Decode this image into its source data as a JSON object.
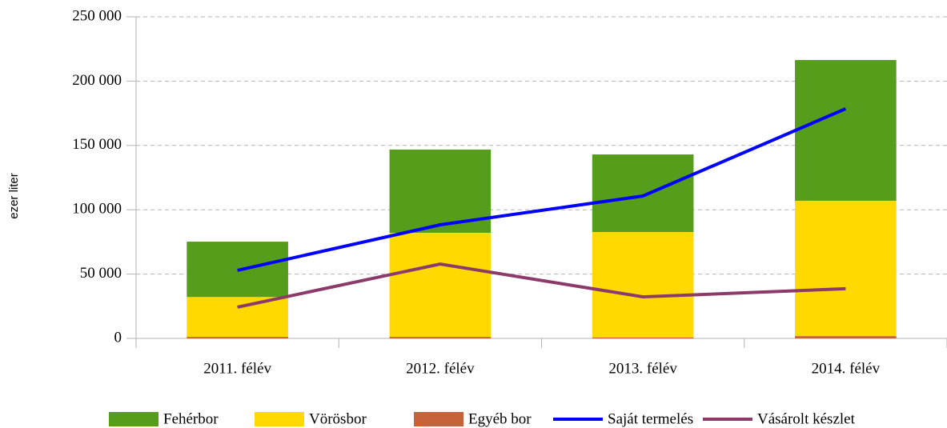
{
  "chart_data": {
    "type": "bar",
    "stacked": true,
    "y_label": "ezer liter",
    "categories": [
      "2011. félév",
      "2012. félév",
      "2013. félév",
      "2014. félév"
    ],
    "series": [
      {
        "name": "Fehérbor",
        "type": "bar",
        "color": "#579d1c",
        "values": [
          43000,
          64700,
          60300,
          109400
        ]
      },
      {
        "name": "Vörösbor",
        "type": "bar",
        "color": "#ffd900",
        "values": [
          31000,
          80900,
          81900,
          105200
        ]
      },
      {
        "name": "Egyéb bor",
        "type": "bar",
        "color": "#c8623a",
        "values": [
          1200,
          1200,
          800,
          1800
        ]
      },
      {
        "name": "Saját termelés",
        "type": "line",
        "color": "#0000ff",
        "values": [
          52900,
          88300,
          110700,
          178500
        ]
      },
      {
        "name": "Vásárolt készlet",
        "type": "line",
        "color": "#8b3a6a",
        "values": [
          24300,
          57800,
          32300,
          38600
        ]
      }
    ],
    "stack_order": [
      2,
      1,
      0
    ],
    "ylim": [
      0,
      250000
    ],
    "yticks": [
      0,
      {
        "value": 50000,
        "label": "50 000"
      },
      {
        "value": 100000,
        "label": "100 000"
      },
      {
        "value": 150000,
        "label": "150 000"
      },
      {
        "value": 200000,
        "label": "200 000"
      },
      {
        "value": 250000,
        "label": "250 000"
      }
    ],
    "grid": true,
    "legend": "bottom"
  }
}
